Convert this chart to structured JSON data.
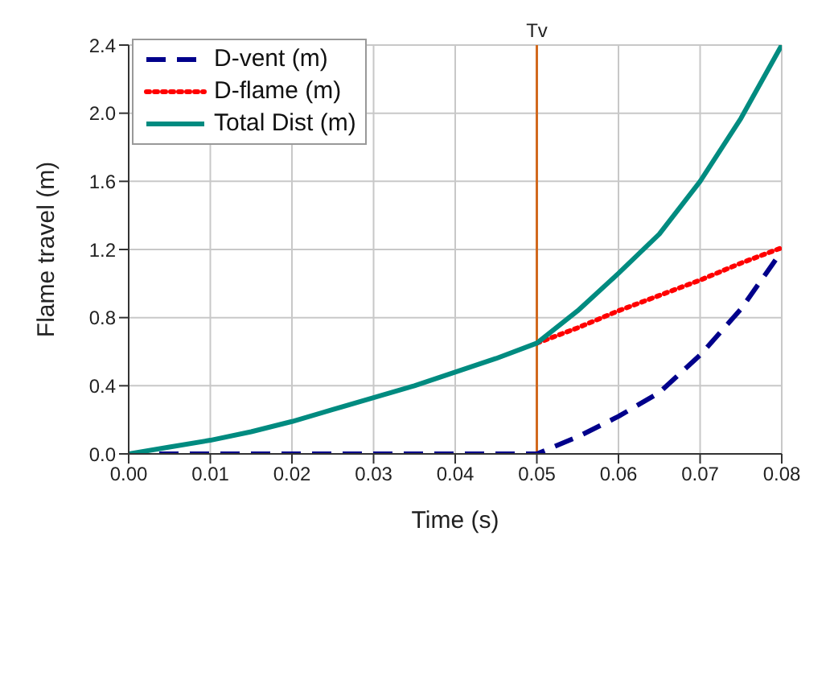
{
  "chart_data": {
    "type": "line",
    "xlabel": "Time (s)",
    "ylabel": "Flame travel (m)",
    "xlim": [
      0,
      0.08
    ],
    "xticks": [
      {
        "value": 0,
        "label": "0.00"
      },
      {
        "value": 0.01,
        "label": "0.01"
      },
      {
        "value": 0.02,
        "label": "0.02"
      },
      {
        "value": 0.03,
        "label": "0.03"
      },
      {
        "value": 0.04,
        "label": "0.04"
      },
      {
        "value": 0.05,
        "label": "0.05"
      },
      {
        "value": 0.06,
        "label": "0.06"
      },
      {
        "value": 0.07,
        "label": "0.07"
      },
      {
        "value": 0.08,
        "label": "0.08"
      }
    ],
    "ylim": [
      0,
      2.4
    ],
    "yticks": [
      {
        "value": 0,
        "label": "0.0"
      },
      {
        "value": 0.4,
        "label": "0.4"
      },
      {
        "value": 0.8,
        "label": "0.8"
      },
      {
        "value": 1.2,
        "label": "1.2"
      },
      {
        "value": 1.6,
        "label": "1.6"
      },
      {
        "value": 2,
        "label": "2.0"
      },
      {
        "value": 2.4,
        "label": "2.4"
      }
    ],
    "grid": true,
    "legend": "top left",
    "marker": "none",
    "ref_lines": [
      {
        "axis": "x",
        "value": 0.05,
        "label": "Tv",
        "color": "#d2691e"
      }
    ],
    "series": [
      {
        "name": "D-vent (m)",
        "color": "#00008b",
        "line_style": "dashed",
        "x": [
          0,
          0.01,
          0.02,
          0.03,
          0.04,
          0.05,
          0.055,
          0.06,
          0.065,
          0.07,
          0.075,
          0.08
        ],
        "values": [
          0,
          0,
          0,
          0,
          0,
          0,
          0.1,
          0.22,
          0.36,
          0.58,
          0.85,
          1.19
        ]
      },
      {
        "name": "D-flame (m)",
        "color": "#ff0000",
        "line_style": "dotted",
        "x": [
          0.05,
          0.055,
          0.06,
          0.065,
          0.07,
          0.075,
          0.08
        ],
        "values": [
          0.65,
          0.74,
          0.84,
          0.93,
          1.02,
          1.12,
          1.21
        ]
      },
      {
        "name": "Total Dist (m)",
        "color": "#008b80",
        "line_style": "solid",
        "x": [
          0,
          0.005,
          0.01,
          0.015,
          0.02,
          0.025,
          0.03,
          0.035,
          0.04,
          0.045,
          0.05,
          0.055,
          0.06,
          0.065,
          0.07,
          0.075,
          0.08
        ],
        "values": [
          0,
          0.04,
          0.08,
          0.13,
          0.19,
          0.26,
          0.33,
          0.4,
          0.48,
          0.56,
          0.65,
          0.84,
          1.06,
          1.29,
          1.6,
          1.97,
          2.4
        ]
      }
    ]
  }
}
